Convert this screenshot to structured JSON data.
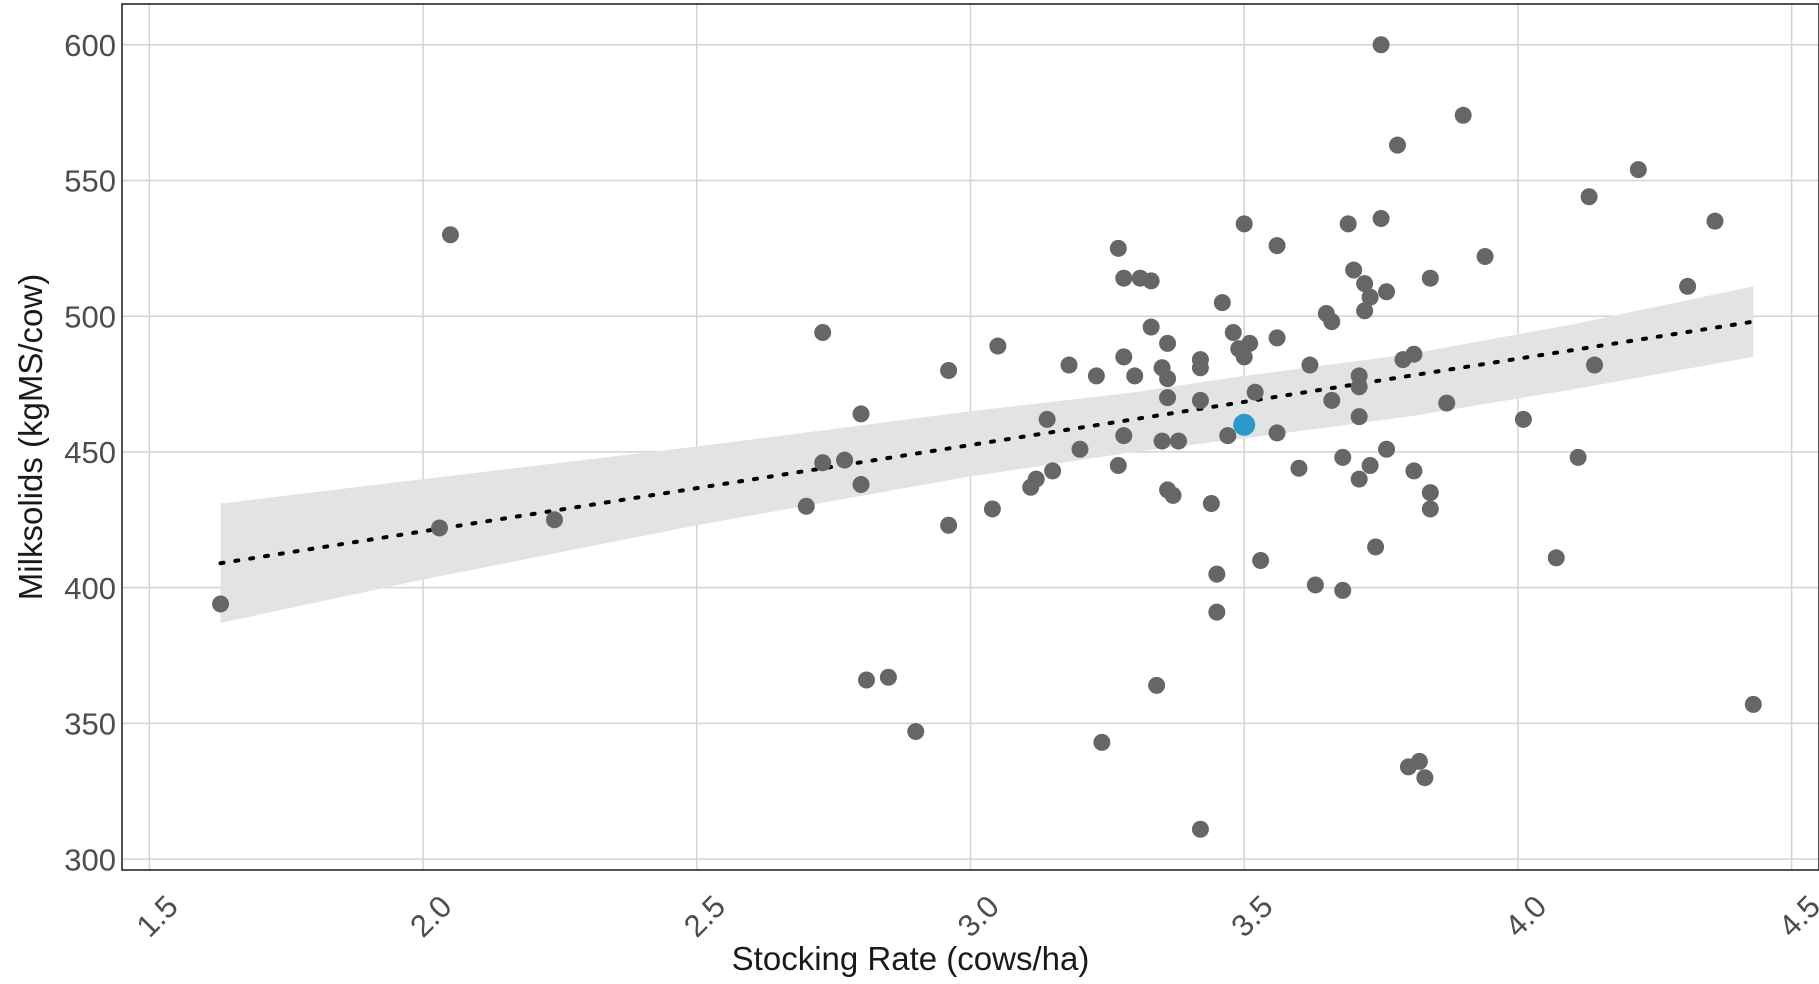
{
  "chart_data": {
    "type": "scatter",
    "xlabel": "Stocking Rate (cows/ha)",
    "ylabel": "Milksolids (kgMS/cow)",
    "xlim": [
      1.45,
      4.55
    ],
    "ylim": [
      296,
      615
    ],
    "x_ticks": [
      "1.5",
      "2.0",
      "2.5",
      "3.0",
      "3.5",
      "4.0",
      "4.5"
    ],
    "y_ticks": [
      "300",
      "350",
      "400",
      "450",
      "500",
      "550",
      "600"
    ],
    "grid": true,
    "legend": "none",
    "colors": {
      "points": "#666666",
      "highlight": "#2b9ac9",
      "trend": "#000000",
      "confidence_band": "#e3e3e3"
    },
    "trend_line": {
      "style": "dotted",
      "start": [
        1.63,
        409
      ],
      "end": [
        4.43,
        498
      ]
    },
    "confidence_band": [
      {
        "x": 1.63,
        "lower": 387,
        "upper": 431
      },
      {
        "x": 2.0,
        "lower": 403,
        "upper": 440
      },
      {
        "x": 2.5,
        "lower": 423,
        "upper": 452
      },
      {
        "x": 3.0,
        "lower": 441,
        "upper": 465
      },
      {
        "x": 3.3,
        "lower": 450,
        "upper": 472
      },
      {
        "x": 3.5,
        "lower": 455,
        "upper": 478
      },
      {
        "x": 3.8,
        "lower": 463,
        "upper": 486
      },
      {
        "x": 4.1,
        "lower": 473,
        "upper": 497
      },
      {
        "x": 4.43,
        "lower": 485,
        "upper": 511
      }
    ],
    "highlight_point": {
      "x": 3.5,
      "y": 460
    },
    "points": [
      {
        "x": 1.63,
        "y": 394
      },
      {
        "x": 2.03,
        "y": 422
      },
      {
        "x": 2.05,
        "y": 530
      },
      {
        "x": 2.24,
        "y": 425
      },
      {
        "x": 2.7,
        "y": 430
      },
      {
        "x": 2.73,
        "y": 494
      },
      {
        "x": 2.73,
        "y": 446
      },
      {
        "x": 2.77,
        "y": 447
      },
      {
        "x": 2.8,
        "y": 464
      },
      {
        "x": 2.8,
        "y": 438
      },
      {
        "x": 2.81,
        "y": 366
      },
      {
        "x": 2.85,
        "y": 367
      },
      {
        "x": 2.9,
        "y": 347
      },
      {
        "x": 2.96,
        "y": 480
      },
      {
        "x": 2.96,
        "y": 423
      },
      {
        "x": 3.04,
        "y": 429
      },
      {
        "x": 3.05,
        "y": 489
      },
      {
        "x": 3.11,
        "y": 437
      },
      {
        "x": 3.12,
        "y": 440
      },
      {
        "x": 3.14,
        "y": 462
      },
      {
        "x": 3.15,
        "y": 443
      },
      {
        "x": 3.18,
        "y": 482
      },
      {
        "x": 3.2,
        "y": 451
      },
      {
        "x": 3.23,
        "y": 478
      },
      {
        "x": 3.24,
        "y": 343
      },
      {
        "x": 3.27,
        "y": 525
      },
      {
        "x": 3.28,
        "y": 514
      },
      {
        "x": 3.28,
        "y": 485
      },
      {
        "x": 3.28,
        "y": 456
      },
      {
        "x": 3.27,
        "y": 445
      },
      {
        "x": 3.3,
        "y": 478
      },
      {
        "x": 3.31,
        "y": 514
      },
      {
        "x": 3.33,
        "y": 513
      },
      {
        "x": 3.33,
        "y": 496
      },
      {
        "x": 3.34,
        "y": 364
      },
      {
        "x": 3.35,
        "y": 481
      },
      {
        "x": 3.35,
        "y": 454
      },
      {
        "x": 3.36,
        "y": 490
      },
      {
        "x": 3.36,
        "y": 477
      },
      {
        "x": 3.36,
        "y": 470
      },
      {
        "x": 3.36,
        "y": 436
      },
      {
        "x": 3.37,
        "y": 434
      },
      {
        "x": 3.38,
        "y": 454
      },
      {
        "x": 3.42,
        "y": 484
      },
      {
        "x": 3.42,
        "y": 481
      },
      {
        "x": 3.42,
        "y": 469
      },
      {
        "x": 3.42,
        "y": 311
      },
      {
        "x": 3.44,
        "y": 431
      },
      {
        "x": 3.45,
        "y": 405
      },
      {
        "x": 3.45,
        "y": 391
      },
      {
        "x": 3.46,
        "y": 505
      },
      {
        "x": 3.47,
        "y": 456
      },
      {
        "x": 3.48,
        "y": 494
      },
      {
        "x": 3.49,
        "y": 488
      },
      {
        "x": 3.5,
        "y": 534
      },
      {
        "x": 3.5,
        "y": 485
      },
      {
        "x": 3.51,
        "y": 490
      },
      {
        "x": 3.52,
        "y": 472
      },
      {
        "x": 3.53,
        "y": 410
      },
      {
        "x": 3.56,
        "y": 526
      },
      {
        "x": 3.56,
        "y": 492
      },
      {
        "x": 3.56,
        "y": 457
      },
      {
        "x": 3.6,
        "y": 444
      },
      {
        "x": 3.62,
        "y": 482
      },
      {
        "x": 3.63,
        "y": 401
      },
      {
        "x": 3.65,
        "y": 501
      },
      {
        "x": 3.66,
        "y": 498
      },
      {
        "x": 3.66,
        "y": 469
      },
      {
        "x": 3.68,
        "y": 448
      },
      {
        "x": 3.68,
        "y": 399
      },
      {
        "x": 3.69,
        "y": 534
      },
      {
        "x": 3.7,
        "y": 517
      },
      {
        "x": 3.71,
        "y": 478
      },
      {
        "x": 3.71,
        "y": 474
      },
      {
        "x": 3.71,
        "y": 463
      },
      {
        "x": 3.71,
        "y": 440
      },
      {
        "x": 3.72,
        "y": 512
      },
      {
        "x": 3.72,
        "y": 502
      },
      {
        "x": 3.73,
        "y": 507
      },
      {
        "x": 3.73,
        "y": 445
      },
      {
        "x": 3.74,
        "y": 415
      },
      {
        "x": 3.75,
        "y": 600
      },
      {
        "x": 3.75,
        "y": 536
      },
      {
        "x": 3.76,
        "y": 509
      },
      {
        "x": 3.76,
        "y": 451
      },
      {
        "x": 3.78,
        "y": 563
      },
      {
        "x": 3.79,
        "y": 484
      },
      {
        "x": 3.8,
        "y": 334
      },
      {
        "x": 3.81,
        "y": 486
      },
      {
        "x": 3.81,
        "y": 443
      },
      {
        "x": 3.82,
        "y": 336
      },
      {
        "x": 3.83,
        "y": 330
      },
      {
        "x": 3.84,
        "y": 514
      },
      {
        "x": 3.84,
        "y": 435
      },
      {
        "x": 3.84,
        "y": 429
      },
      {
        "x": 3.87,
        "y": 468
      },
      {
        "x": 3.9,
        "y": 574
      },
      {
        "x": 3.94,
        "y": 522
      },
      {
        "x": 4.01,
        "y": 462
      },
      {
        "x": 4.07,
        "y": 411
      },
      {
        "x": 4.11,
        "y": 448
      },
      {
        "x": 4.13,
        "y": 544
      },
      {
        "x": 4.14,
        "y": 482
      },
      {
        "x": 4.22,
        "y": 554
      },
      {
        "x": 4.31,
        "y": 511
      },
      {
        "x": 4.36,
        "y": 535
      },
      {
        "x": 4.43,
        "y": 357
      }
    ]
  }
}
